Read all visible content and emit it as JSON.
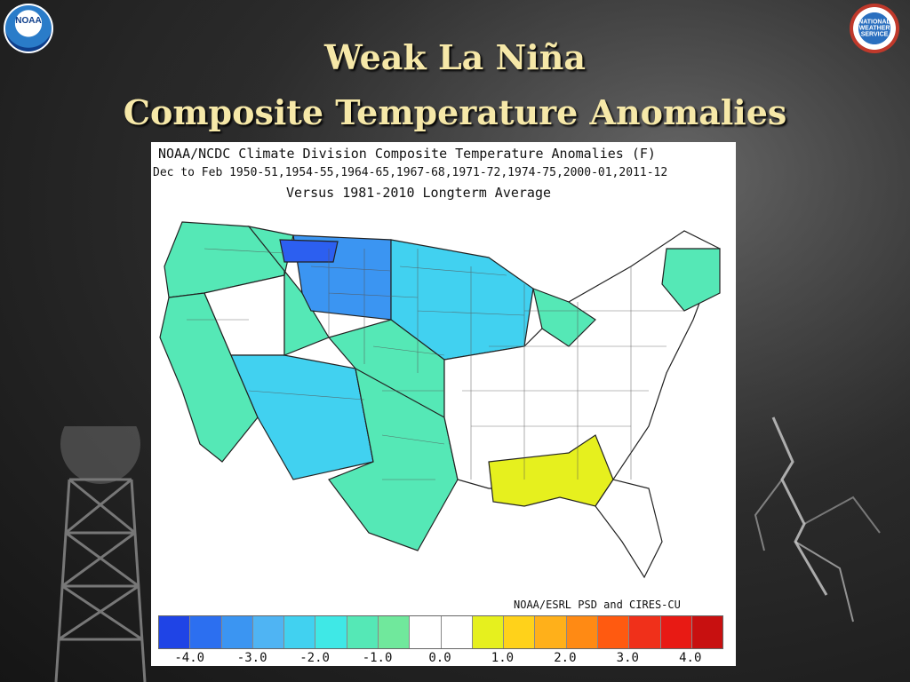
{
  "header": {
    "title_line1": "Weak La Niña",
    "title_line2": "Composite Temperature Anomalies"
  },
  "logos": {
    "left": {
      "icon": "noaa-logo-icon",
      "text": "NOAA"
    },
    "right": {
      "icon": "nws-logo-icon",
      "text": "NATIONAL WEATHER SERVICE"
    }
  },
  "map": {
    "heading_line1": "NOAA/NCDC Climate Division Composite Temperature Anomalies (F)",
    "heading_line2": "Dec to Feb   1950-51,1954-55,1964-65,1967-68,1971-72,1974-75,2000-01,2011-12",
    "heading_line3": "Versus 1981-2010 Longterm Average",
    "credit": "NOAA/ESRL PSD and CIRES-CU",
    "colorbar": {
      "colors": [
        "#1f44e6",
        "#2c6ff0",
        "#3b95f2",
        "#4fb4f3",
        "#41d1f0",
        "#3fe8e6",
        "#55e8b6",
        "#70e89c",
        "#ffffff",
        "#ffffff",
        "#e6f01e",
        "#ffd21a",
        "#ffb01a",
        "#ff8a14",
        "#ff5a10",
        "#f0301a",
        "#e81a14",
        "#c81010"
      ],
      "labels": [
        "-4.0",
        "-3.0",
        "-2.0",
        "-1.0",
        "0.0",
        "1.0",
        "2.0",
        "3.0",
        "4.0"
      ]
    },
    "region_colors": {
      "strong_cold": "#2c5ff0",
      "cold": "#3b95f2",
      "moderate_cold": "#41d1f0",
      "mild_cold": "#55e8b6",
      "neutral": "#ffffff",
      "warm": "#e6f01e"
    }
  }
}
